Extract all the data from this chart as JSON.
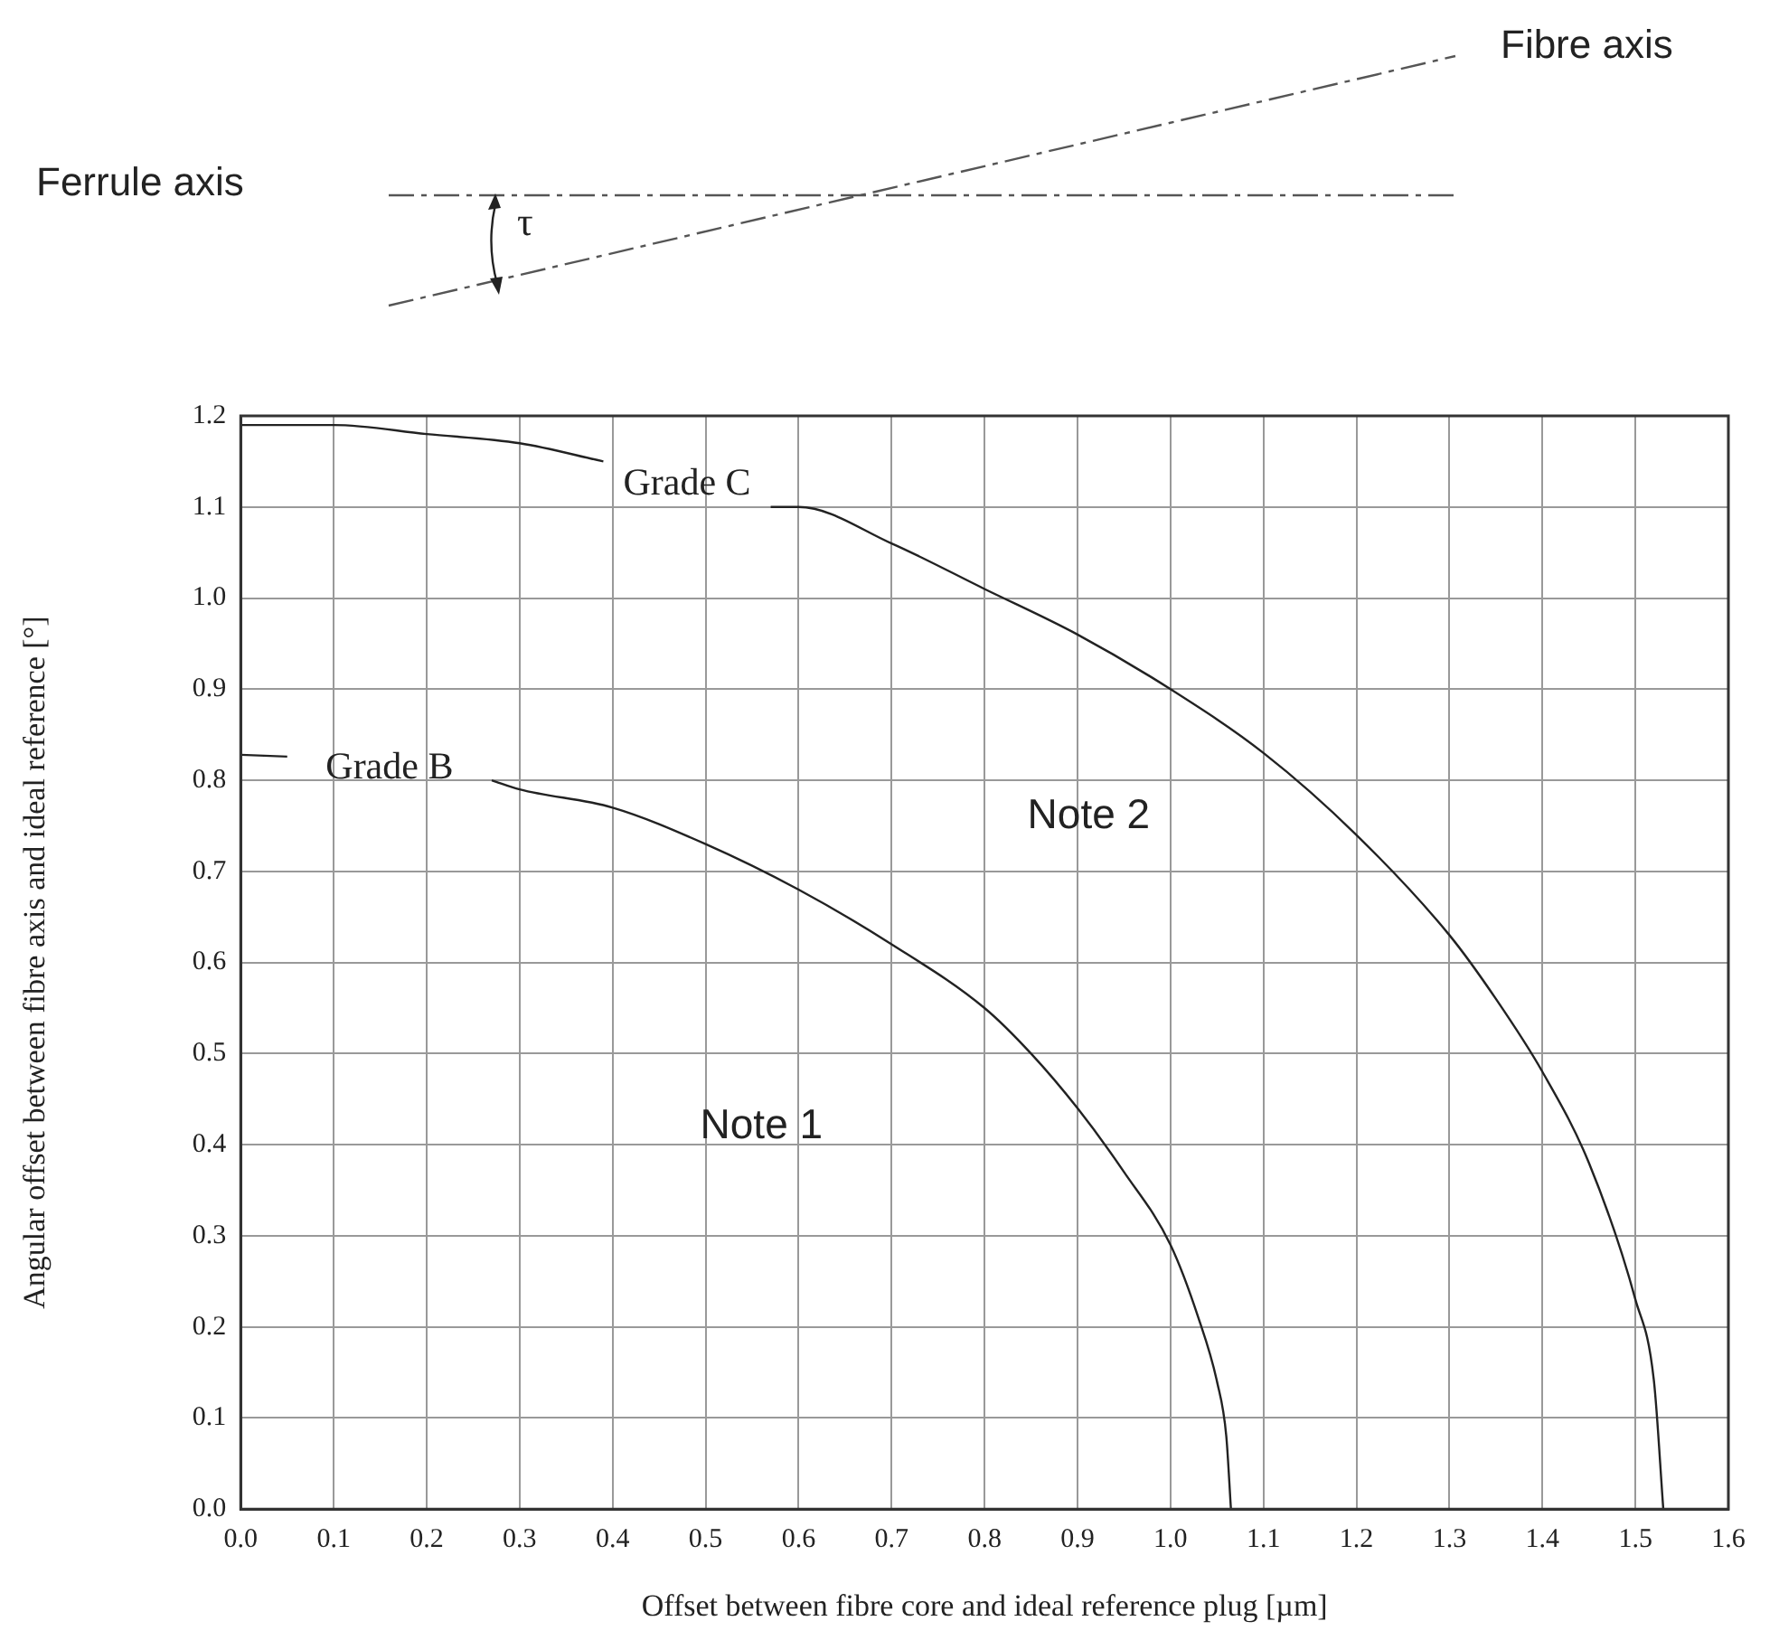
{
  "chart_data": {
    "type": "line",
    "xlabel": "Offset between fibre core and ideal reference plug [µm]",
    "ylabel": "Angular offset between fibre axis and ideal reference [°]",
    "annotations": [
      "Fibre axis",
      "Ferrule axis",
      "τ",
      "Note 1",
      "Note 2"
    ],
    "series": [
      {
        "name": "Grade B",
        "color": "#222222",
        "x": [
          0,
          0.05,
          0.15,
          0.27,
          0.3,
          0.4,
          0.5,
          0.6,
          0.7,
          0.8,
          0.85,
          0.9,
          0.95,
          1.0,
          1.03,
          1.05,
          1.06,
          1.065
        ],
        "values": [
          0.828,
          0.826,
          null,
          0.8,
          0.79,
          0.77,
          0.73,
          0.68,
          0.62,
          0.55,
          0.5,
          0.44,
          0.37,
          0.29,
          0.21,
          0.14,
          0.08,
          0
        ]
      },
      {
        "name": "Grade C",
        "color": "#222222",
        "x": [
          0,
          0.1,
          0.2,
          0.3,
          0.39,
          0.48,
          0.57,
          0.6,
          0.7,
          0.8,
          0.9,
          1.0,
          1.1,
          1.2,
          1.3,
          1.35,
          1.4,
          1.45,
          1.5,
          1.52,
          1.53
        ],
        "values": [
          1.19,
          1.19,
          1.18,
          1.17,
          1.15,
          null,
          1.1,
          1.1,
          1.06,
          1.01,
          0.96,
          0.9,
          0.83,
          0.74,
          0.63,
          0.56,
          0.48,
          0.38,
          0.23,
          0.14,
          0
        ]
      }
    ],
    "xlim": [
      0,
      1.6
    ],
    "ylim": [
      0,
      1.2
    ],
    "xticks": [
      {
        "value": 0,
        "label": "0.0"
      },
      0.1,
      0.2,
      0.3,
      0.4,
      0.5,
      0.6,
      0.7,
      0.8,
      0.9,
      {
        "value": 1,
        "label": "1.0"
      },
      1.1,
      1.2,
      1.3,
      1.4,
      1.5,
      1.6
    ],
    "yticks": [
      {
        "value": 0,
        "label": "0.0"
      },
      0.1,
      0.2,
      0.3,
      0.4,
      0.5,
      0.6,
      0.7,
      0.8,
      0.9,
      {
        "value": 1,
        "label": "1.0"
      },
      1.1,
      1.2
    ],
    "grid": true,
    "marker": "none",
    "line_style": "solid"
  }
}
